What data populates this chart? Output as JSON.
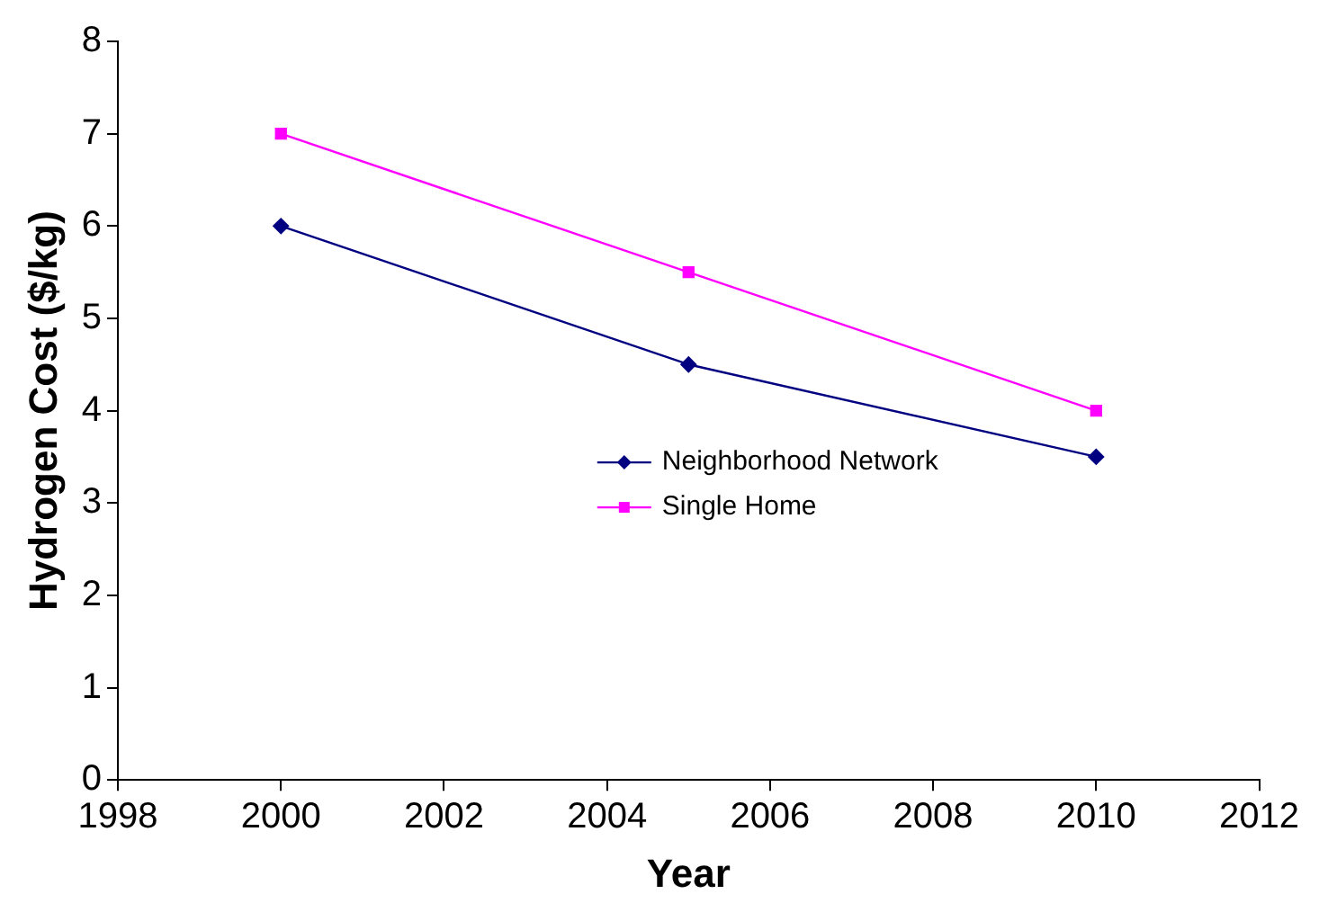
{
  "chart_data": {
    "type": "line",
    "xlabel": "Year",
    "ylabel": "Hydrogen Cost ($/kg)",
    "x": [
      2000,
      2005,
      2010
    ],
    "series": [
      {
        "name": "Neighborhood Network",
        "color": "#000080",
        "marker": "diamond",
        "values": [
          6,
          4.5,
          3.5
        ]
      },
      {
        "name": "Single Home",
        "color": "#ff00ff",
        "marker": "square",
        "values": [
          7,
          5.5,
          4
        ]
      }
    ],
    "xlim": [
      1998,
      2012
    ],
    "xticks": [
      1998,
      2000,
      2002,
      2004,
      2006,
      2008,
      2010,
      2012
    ],
    "ylim": [
      0,
      8
    ],
    "yticks": [
      0,
      1,
      2,
      3,
      4,
      5,
      6,
      7,
      8
    ],
    "grid": false,
    "legend": "right",
    "line_style": "solid"
  }
}
